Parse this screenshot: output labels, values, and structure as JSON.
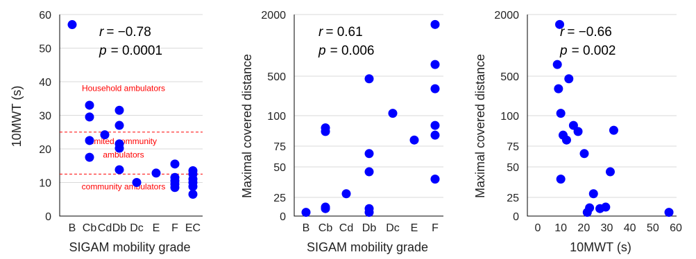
{
  "chart_data": [
    {
      "type": "scatter",
      "xlabel": "SIGAM mobility grade",
      "ylabel": "10MWT (s)",
      "categories": [
        "B",
        "Cb",
        "Cd",
        "Db",
        "Dc",
        "E",
        "F",
        "EC"
      ],
      "ylim": [
        0,
        60
      ],
      "yticks": [
        "0",
        "10",
        "20",
        "30",
        "40",
        "50",
        "60"
      ],
      "grid": "horizontal",
      "marker_color": "#0000ff",
      "stats": {
        "r_label": "r",
        "r_value": "= −0.78",
        "p_label": "p",
        "p_value": "= 0.0001"
      },
      "points": [
        {
          "x": "B",
          "y": 57
        },
        {
          "x": "Cb",
          "y": 33
        },
        {
          "x": "Cb",
          "y": 29.5
        },
        {
          "x": "Cb",
          "y": 22.5
        },
        {
          "x": "Cb",
          "y": 17.5
        },
        {
          "x": "Cd",
          "y": 24.2
        },
        {
          "x": "Db",
          "y": 31.5
        },
        {
          "x": "Db",
          "y": 27
        },
        {
          "x": "Db",
          "y": 21.5
        },
        {
          "x": "Db",
          "y": 20.2
        },
        {
          "x": "Db",
          "y": 13.8
        },
        {
          "x": "Dc",
          "y": 10
        },
        {
          "x": "E",
          "y": 12.8
        },
        {
          "x": "F",
          "y": 15.5
        },
        {
          "x": "F",
          "y": 11.5
        },
        {
          "x": "F",
          "y": 10.5
        },
        {
          "x": "F",
          "y": 9.5
        },
        {
          "x": "F",
          "y": 8.5
        },
        {
          "x": "EC",
          "y": 13.5
        },
        {
          "x": "EC",
          "y": 12.5
        },
        {
          "x": "EC",
          "y": 11
        },
        {
          "x": "EC",
          "y": 10
        },
        {
          "x": "EC",
          "y": 8.8
        },
        {
          "x": "EC",
          "y": 6.5
        }
      ],
      "thresholds": [
        25,
        12.5
      ],
      "annotations": [
        {
          "text": "Household ambulators",
          "y": 38
        },
        {
          "text": "limited community",
          "y": 22.3
        },
        {
          "text": "ambulators",
          "y": 18.2
        },
        {
          "text": "community ambulators",
          "y": 8.8
        }
      ]
    },
    {
      "type": "scatter",
      "xlabel": "SIGAM mobility grade",
      "ylabel": "Maximal covered distance",
      "categories": [
        "B",
        "Cb",
        "Cd",
        "Db",
        "Dc",
        "E",
        "F"
      ],
      "yticks": [
        "0",
        "25",
        "50",
        "75",
        "100",
        "500",
        "2000"
      ],
      "grid": "horizontal",
      "marker_color": "#0000ff",
      "stats": {
        "r_label": "r",
        "r_value": "= 0.61",
        "p_label": "p",
        "p_value": "= 0.006"
      },
      "points": [
        {
          "x": "B",
          "y": 5
        },
        {
          "x": "Cb",
          "y": 90
        },
        {
          "x": "Cb",
          "y": 87
        },
        {
          "x": "Cb",
          "y": 12
        },
        {
          "x": "Cb",
          "y": 10
        },
        {
          "x": "Cd",
          "y": 28
        },
        {
          "x": "Db",
          "y": 450
        },
        {
          "x": "Db",
          "y": 66
        },
        {
          "x": "Db",
          "y": 46
        },
        {
          "x": "Db",
          "y": 10
        },
        {
          "x": "Db",
          "y": 5
        },
        {
          "x": "Dc",
          "y": 110
        },
        {
          "x": "E",
          "y": 80
        },
        {
          "x": "F",
          "y": 1600
        },
        {
          "x": "F",
          "y": 650
        },
        {
          "x": "F",
          "y": 300
        },
        {
          "x": "F",
          "y": 92
        },
        {
          "x": "F",
          "y": 84
        },
        {
          "x": "F",
          "y": 40
        }
      ]
    },
    {
      "type": "scatter",
      "xlabel": "10MWT (s)",
      "ylabel": "Maximal covered distance",
      "xlim": [
        0,
        60
      ],
      "xticks": [
        "0",
        "10",
        "20",
        "30",
        "40",
        "50",
        "60"
      ],
      "yticks": [
        "0",
        "25",
        "50",
        "75",
        "100",
        "500",
        "2000"
      ],
      "grid": "horizontal",
      "marker_color": "#0000ff",
      "stats": {
        "r_label": "r",
        "r_value": "= −0.66",
        "p_label": "p",
        "p_value": "= 0.002"
      },
      "points": [
        {
          "x": 8.5,
          "y": 650
        },
        {
          "x": 9.5,
          "y": 1600
        },
        {
          "x": 9,
          "y": 300
        },
        {
          "x": 10,
          "y": 110
        },
        {
          "x": 13.5,
          "y": 450
        },
        {
          "x": 11,
          "y": 84
        },
        {
          "x": 12.5,
          "y": 80
        },
        {
          "x": 15.5,
          "y": 92
        },
        {
          "x": 17.5,
          "y": 87
        },
        {
          "x": 20.2,
          "y": 66
        },
        {
          "x": 10,
          "y": 40
        },
        {
          "x": 31.5,
          "y": 46
        },
        {
          "x": 33,
          "y": 88
        },
        {
          "x": 24.2,
          "y": 28
        },
        {
          "x": 22.5,
          "y": 11
        },
        {
          "x": 21.5,
          "y": 5
        },
        {
          "x": 27,
          "y": 10
        },
        {
          "x": 29.5,
          "y": 12
        },
        {
          "x": 57,
          "y": 5
        }
      ]
    }
  ]
}
